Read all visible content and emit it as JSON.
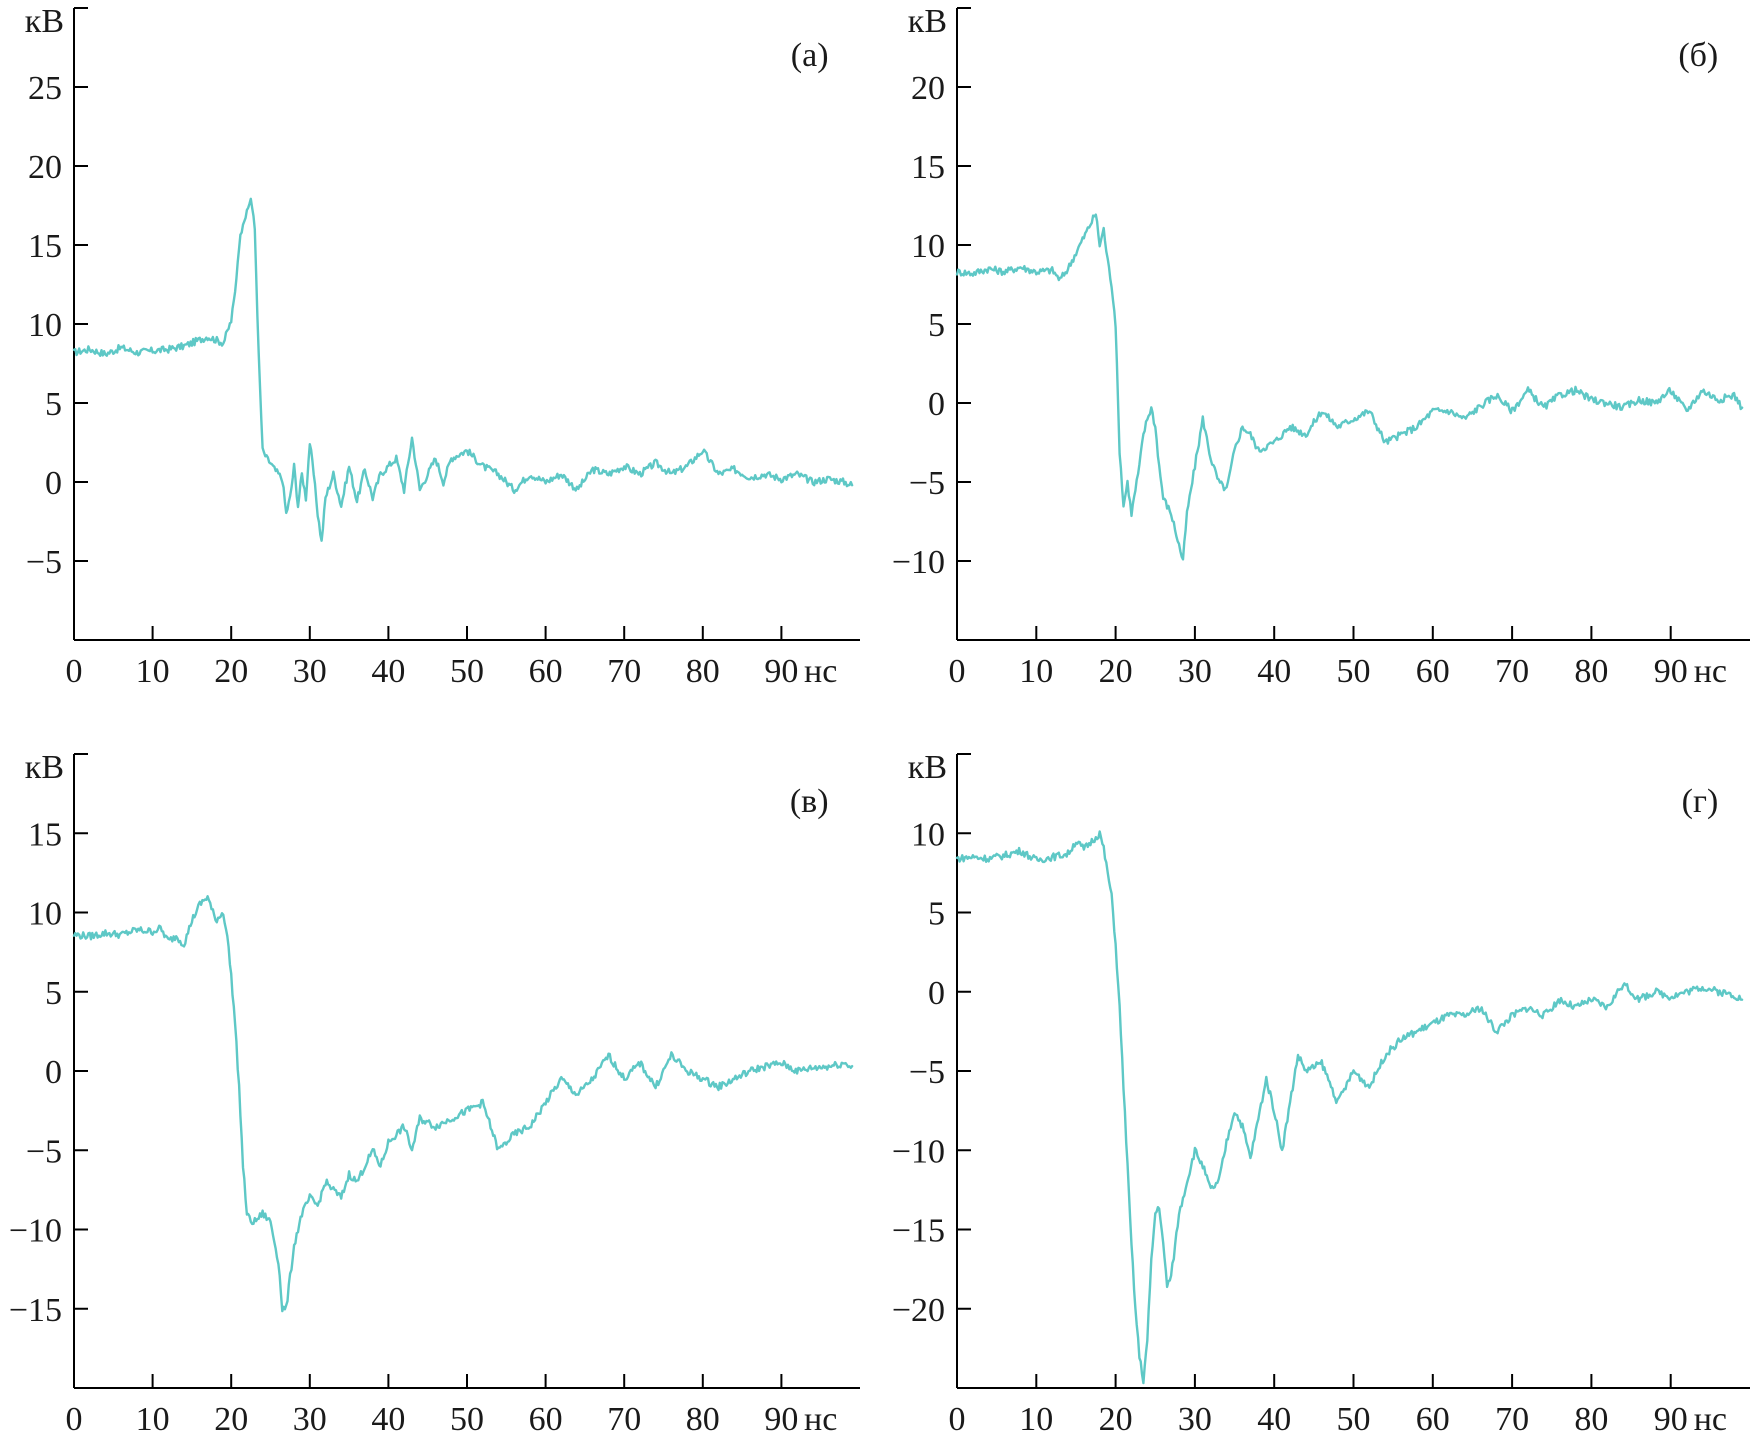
{
  "colors": {
    "trace": "#5ec8c6",
    "axis": "#000000"
  },
  "chart_data": [
    {
      "type": "line",
      "panel_label": "(а)",
      "y_unit": "кВ",
      "x_unit": "нс",
      "xlim": [
        0,
        100
      ],
      "ylim": [
        -10,
        30
      ],
      "x_ticks": [
        0,
        10,
        20,
        30,
        40,
        50,
        60,
        70,
        80,
        90
      ],
      "y_ticks": [
        -5,
        0,
        5,
        10,
        15,
        20,
        25
      ],
      "series": [
        {
          "x": [
            0,
            2,
            4,
            6,
            8,
            10,
            12,
            14,
            16,
            17,
            18,
            19,
            19.5,
            20,
            20.5,
            21,
            21.5,
            22,
            22.5,
            23,
            23.5,
            24,
            24.5,
            25,
            25.5,
            26,
            26.5,
            27,
            27.5,
            28,
            28.5,
            29,
            29.5,
            30,
            30.5,
            31,
            31.5,
            32,
            33,
            34,
            35,
            36,
            37,
            38,
            39,
            40,
            41,
            42,
            43,
            44,
            45,
            46,
            47,
            48,
            50,
            52,
            54,
            56,
            58,
            60,
            62,
            64,
            66,
            68,
            70,
            72,
            74,
            76,
            78,
            80,
            82,
            84,
            86,
            88,
            90,
            92,
            94,
            96,
            98,
            99
          ],
          "y": [
            8.2,
            8.4,
            8.1,
            8.5,
            8.2,
            8.3,
            8.4,
            8.6,
            9.0,
            9.2,
            9.0,
            8.8,
            9.5,
            10.2,
            12.0,
            15.0,
            16.5,
            17.0,
            18.0,
            16.0,
            8.0,
            2.0,
            1.5,
            1.2,
            0.8,
            0.5,
            0.2,
            -2.0,
            -1.0,
            1.0,
            -1.5,
            0.5,
            -1.0,
            2.5,
            0.5,
            -2.0,
            -3.8,
            -1.0,
            0.5,
            -1.5,
            1.0,
            -1.2,
            0.8,
            -1.0,
            0.5,
            1.0,
            1.5,
            -0.5,
            2.8,
            -0.5,
            0.5,
            1.5,
            0.0,
            1.5,
            2.0,
            1.0,
            0.5,
            -0.5,
            0.5,
            0.0,
            0.5,
            -0.5,
            0.8,
            0.5,
            1.0,
            0.5,
            1.2,
            0.5,
            1.0,
            2.0,
            0.5,
            0.8,
            0.3,
            0.5,
            0.2,
            0.5,
            0.0,
            0.2,
            0.0,
            -0.2
          ]
        }
      ]
    },
    {
      "type": "line",
      "panel_label": "(б)",
      "y_unit": "кВ",
      "x_unit": "нс",
      "xlim": [
        0,
        100
      ],
      "ylim": [
        -15,
        25
      ],
      "x_ticks": [
        0,
        10,
        20,
        30,
        40,
        50,
        60,
        70,
        80,
        90
      ],
      "y_ticks": [
        -10,
        -5,
        0,
        5,
        10,
        15,
        20
      ],
      "series": [
        {
          "x": [
            0,
            2,
            4,
            6,
            8,
            10,
            12,
            13,
            14,
            15,
            16,
            17,
            17.5,
            18,
            18.5,
            19,
            19.5,
            20,
            20.5,
            21,
            21.5,
            22,
            22.5,
            23,
            23.5,
            24,
            24.5,
            25,
            25.5,
            26,
            27,
            28,
            28.5,
            29,
            30,
            31,
            32,
            33,
            34,
            35,
            36,
            37,
            38,
            40,
            42,
            44,
            46,
            48,
            50,
            52,
            54,
            56,
            58,
            60,
            62,
            64,
            66,
            68,
            70,
            72,
            74,
            76,
            78,
            80,
            82,
            84,
            86,
            88,
            90,
            92,
            94,
            96,
            98,
            99
          ],
          "y": [
            8.3,
            8.2,
            8.5,
            8.3,
            8.6,
            8.3,
            8.4,
            7.8,
            8.5,
            9.5,
            10.5,
            11.5,
            12.0,
            10.0,
            11.0,
            9.0,
            7.5,
            5.0,
            -3.0,
            -6.5,
            -5.0,
            -7.0,
            -5.5,
            -4.0,
            -2.0,
            -1.0,
            -0.3,
            -1.5,
            -4.0,
            -6.0,
            -7.0,
            -9.0,
            -10.0,
            -7.0,
            -4.0,
            -1.0,
            -3.5,
            -5.0,
            -5.5,
            -3.0,
            -1.5,
            -2.0,
            -3.0,
            -2.5,
            -1.5,
            -2.0,
            -0.5,
            -1.5,
            -1.0,
            -0.5,
            -2.5,
            -2.0,
            -1.5,
            -0.5,
            -0.5,
            -1.0,
            -0.2,
            0.5,
            -0.5,
            0.8,
            -0.3,
            0.5,
            0.8,
            0.2,
            0.0,
            -0.3,
            0.2,
            0.0,
            0.8,
            -0.5,
            0.8,
            0.2,
            0.5,
            -0.3
          ]
        }
      ]
    },
    {
      "type": "line",
      "panel_label": "(в)",
      "y_unit": "кВ",
      "x_unit": "нс",
      "xlim": [
        0,
        100
      ],
      "ylim": [
        -20,
        20
      ],
      "x_ticks": [
        0,
        10,
        20,
        30,
        40,
        50,
        60,
        70,
        80,
        90
      ],
      "y_ticks": [
        -15,
        -10,
        -5,
        0,
        5,
        10,
        15
      ],
      "series": [
        {
          "x": [
            0,
            2,
            4,
            6,
            8,
            10,
            11,
            12,
            13,
            14,
            15,
            16,
            17,
            18,
            19,
            19.5,
            20,
            20.5,
            21,
            21.5,
            22,
            22.5,
            23,
            24,
            25,
            26,
            26.5,
            27,
            28,
            29,
            30,
            31,
            32,
            33,
            34,
            35,
            36,
            37,
            38,
            39,
            40,
            41,
            42,
            43,
            44,
            46,
            48,
            50,
            52,
            54,
            56,
            58,
            60,
            62,
            64,
            66,
            68,
            70,
            72,
            74,
            76,
            78,
            80,
            82,
            84,
            86,
            88,
            90,
            92,
            94,
            96,
            98,
            99
          ],
          "y": [
            8.6,
            8.5,
            8.7,
            8.6,
            8.9,
            8.8,
            9.0,
            8.2,
            8.5,
            8.0,
            9.5,
            10.5,
            11.0,
            9.5,
            10.0,
            8.5,
            6.0,
            3.0,
            -1.0,
            -6.0,
            -9.0,
            -9.5,
            -9.5,
            -9.0,
            -9.5,
            -12.0,
            -15.0,
            -15.0,
            -11.0,
            -9.0,
            -8.0,
            -8.5,
            -7.0,
            -7.5,
            -8.0,
            -6.5,
            -7.0,
            -6.0,
            -5.0,
            -6.0,
            -4.5,
            -4.0,
            -3.5,
            -5.0,
            -3.0,
            -3.5,
            -3.0,
            -2.5,
            -2.0,
            -5.0,
            -4.0,
            -3.5,
            -2.0,
            -0.5,
            -1.5,
            -0.5,
            1.0,
            -0.5,
            0.5,
            -1.0,
            1.0,
            0.0,
            -0.5,
            -1.0,
            -0.5,
            0.0,
            0.3,
            0.5,
            0.0,
            0.2,
            0.3,
            0.5,
            0.3
          ]
        }
      ]
    },
    {
      "type": "line",
      "panel_label": "(г)",
      "y_unit": "кВ",
      "x_unit": "нс",
      "xlim": [
        0,
        100
      ],
      "ylim": [
        -25,
        15
      ],
      "x_ticks": [
        0,
        10,
        20,
        30,
        40,
        50,
        60,
        70,
        80,
        90
      ],
      "y_ticks": [
        -20,
        -15,
        -10,
        -5,
        0,
        5,
        10
      ],
      "series": [
        {
          "x": [
            0,
            2,
            4,
            6,
            8,
            10,
            12,
            14,
            15,
            16,
            17,
            18,
            18.5,
            19,
            19.5,
            20,
            20.5,
            21,
            21.5,
            22,
            22.5,
            23,
            23.5,
            24,
            24.5,
            25,
            25.5,
            26,
            26.5,
            27,
            27.5,
            28,
            28.5,
            29,
            30,
            31,
            32,
            33,
            34,
            35,
            36,
            37,
            38,
            39,
            40,
            41,
            42,
            43,
            44,
            46,
            48,
            50,
            52,
            54,
            56,
            58,
            60,
            62,
            64,
            66,
            68,
            70,
            72,
            74,
            76,
            78,
            80,
            82,
            84,
            86,
            88,
            90,
            92,
            94,
            96,
            98,
            99
          ],
          "y": [
            8.4,
            8.5,
            8.4,
            8.6,
            8.9,
            8.3,
            8.5,
            8.7,
            9.5,
            9.0,
            9.5,
            10.0,
            9.0,
            7.5,
            6.0,
            3.0,
            -1.0,
            -6.0,
            -11.0,
            -16.0,
            -20.0,
            -23.0,
            -24.5,
            -22.0,
            -17.0,
            -14.0,
            -13.5,
            -16.0,
            -18.5,
            -18.0,
            -16.0,
            -14.0,
            -13.0,
            -12.0,
            -10.0,
            -11.0,
            -12.5,
            -12.0,
            -9.5,
            -7.5,
            -8.5,
            -10.5,
            -8.0,
            -5.5,
            -7.5,
            -10.0,
            -7.0,
            -4.0,
            -5.0,
            -4.5,
            -7.0,
            -5.0,
            -6.0,
            -4.0,
            -3.0,
            -2.5,
            -2.0,
            -1.5,
            -1.5,
            -1.0,
            -2.5,
            -1.5,
            -1.0,
            -1.5,
            -0.5,
            -1.0,
            -0.5,
            -1.0,
            0.5,
            -0.5,
            0.0,
            -0.3,
            0.0,
            0.3,
            0.0,
            -0.2,
            -0.5
          ]
        }
      ]
    }
  ]
}
